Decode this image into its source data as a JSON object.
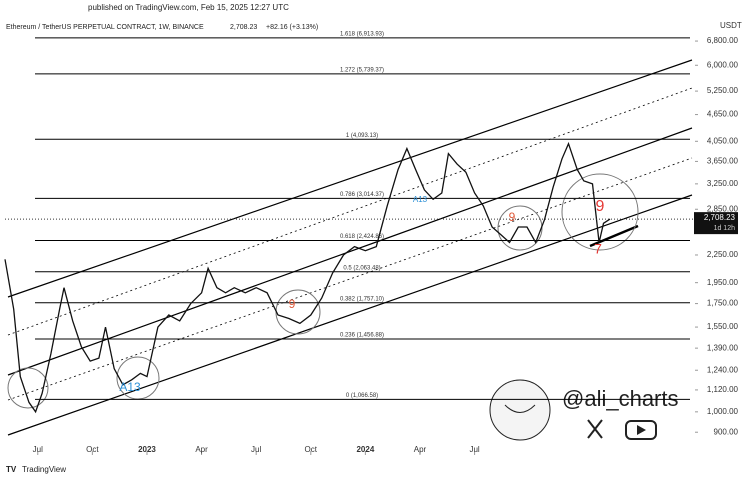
{
  "header": {
    "published": "published on TradingView.com, Feb 15, 2025 12:27 UTC"
  },
  "chart_data": {
    "type": "line",
    "title": "Ethereum / TetherUS PERPETUAL CONTRACT, 1W, BINANCE",
    "last_price": "2,708.23",
    "change": "+82.16 (+3.13%)",
    "currency": "USDT",
    "price_label": "2,708.23",
    "countdown": "1d 12h",
    "color": "#111111",
    "log_scale": true,
    "x": [
      2022.35,
      2022.39,
      2022.42,
      2022.46,
      2022.49,
      2022.52,
      2022.56,
      2022.6,
      2022.62,
      2022.66,
      2022.7,
      2022.74,
      2022.78,
      2022.81,
      2022.85,
      2022.89,
      2022.93,
      2022.97,
      2023.0,
      2023.05,
      2023.1,
      2023.15,
      2023.2,
      2023.25,
      2023.28,
      2023.32,
      2023.36,
      2023.4,
      2023.45,
      2023.5,
      2023.55,
      2023.6,
      2023.65,
      2023.7,
      2023.75,
      2023.8,
      2023.85,
      2023.9,
      2023.95,
      2024.0,
      2024.05,
      2024.1,
      2024.15,
      2024.19,
      2024.23,
      2024.27,
      2024.31,
      2024.35,
      2024.38,
      2024.42,
      2024.46,
      2024.5,
      2024.54,
      2024.58,
      2024.62,
      2024.66,
      2024.7,
      2024.74,
      2024.78,
      2024.82,
      2024.86,
      2024.9,
      2024.93,
      2024.97,
      2025.0,
      2025.04,
      2025.07,
      2025.09,
      2025.12
    ],
    "values": [
      2200,
      1700,
      1200,
      1050,
      1000,
      1100,
      1350,
      1700,
      1900,
      1600,
      1400,
      1300,
      1320,
      1550,
      1250,
      1150,
      1180,
      1220,
      1200,
      1550,
      1650,
      1600,
      1750,
      1850,
      2100,
      1900,
      1850,
      1900,
      1850,
      1900,
      1850,
      1650,
      1620,
      1580,
      1650,
      1800,
      2050,
      2250,
      2350,
      2300,
      2350,
      2900,
      3500,
      3900,
      3500,
      3150,
      3000,
      3100,
      3800,
      3600,
      3450,
      3100,
      2900,
      2600,
      2500,
      2400,
      2600,
      2600,
      2400,
      2700,
      3200,
      3700,
      4000,
      3500,
      3300,
      3250,
      2400,
      2650,
      2708.23
    ],
    "xlim": [
      2022.35,
      2025.5
    ],
    "xticks": [
      {
        "value": 2022.5,
        "label": "Jul"
      },
      {
        "value": 2022.75,
        "label": "Oct"
      },
      {
        "value": 2023.0,
        "label": "2023"
      },
      {
        "value": 2023.25,
        "label": "Apr"
      },
      {
        "value": 2023.5,
        "label": "Jul"
      },
      {
        "value": 2023.75,
        "label": "Oct"
      },
      {
        "value": 2024.0,
        "label": "2024"
      },
      {
        "value": 2024.25,
        "label": "Apr"
      },
      {
        "value": 2024.5,
        "label": "Jul"
      }
    ],
    "ylim": [
      800,
      7200
    ],
    "yticks": [
      {
        "value": 6800,
        "label": "6,800.00"
      },
      {
        "value": 6000,
        "label": "6,000.00"
      },
      {
        "value": 5250,
        "label": "5,250.00"
      },
      {
        "value": 4650,
        "label": "4,650.00"
      },
      {
        "value": 4050,
        "label": "4,050.00"
      },
      {
        "value": 3650,
        "label": "3,650.00"
      },
      {
        "value": 3250,
        "label": "3,250.00"
      },
      {
        "value": 2850,
        "label": "2,850.00"
      },
      {
        "value": 2250,
        "label": "2,250.00"
      },
      {
        "value": 1950,
        "label": "1,950.00"
      },
      {
        "value": 1750,
        "label": "1,750.00"
      },
      {
        "value": 1550,
        "label": "1,550.00"
      },
      {
        "value": 1390,
        "label": "1,390.00"
      },
      {
        "value": 1240,
        "label": "1,240.00"
      },
      {
        "value": 1120,
        "label": "1,120.00"
      },
      {
        "value": 1000,
        "label": "1,000.00"
      },
      {
        "value": 900,
        "label": "900.00"
      }
    ],
    "fib_levels": [
      {
        "label": "1.618 (6,913.93)",
        "value": 6913.93
      },
      {
        "label": "1.272 (5,739.37)",
        "value": 5739.37
      },
      {
        "label": "1 (4,093.13)",
        "value": 4093.13
      },
      {
        "label": "0.786 (3,014.37)",
        "value": 3014.37
      },
      {
        "label": "0.618 (2,424.86)",
        "value": 2424.86
      },
      {
        "label": "0.5 (2,063.48)",
        "value": 2063.48
      },
      {
        "label": "0.382 (1,757.10)",
        "value": 1757.1
      },
      {
        "label": "0.236 (1,456.88)",
        "value": 1456.88
      },
      {
        "label": "0 (1,066.58)",
        "value": 1066.58
      }
    ],
    "annotations": [
      "A13",
      "9",
      "9",
      "A13",
      "9",
      "7"
    ]
  },
  "watermark": {
    "handle": "@ali_charts",
    "brand": "TradingView"
  }
}
